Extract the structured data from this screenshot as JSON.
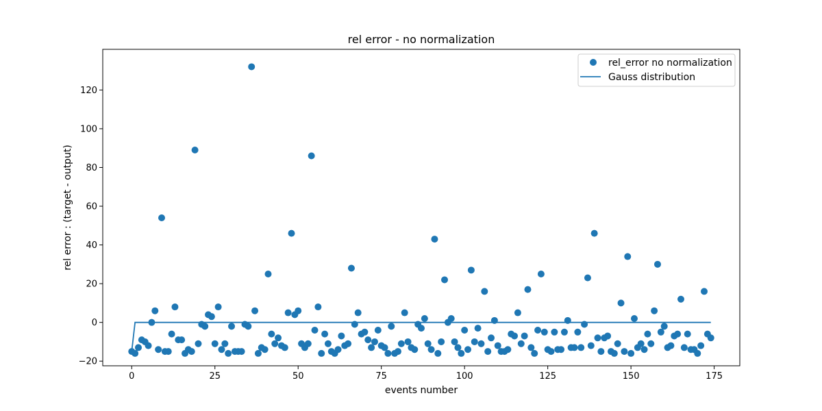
{
  "chart_data": {
    "type": "scatter",
    "title": "rel error - no normalization",
    "xlabel": "events number",
    "ylabel": "rel error : (target - output)",
    "xlim": [
      -8.7,
      182.7
    ],
    "ylim": [
      -22.4,
      141.0
    ],
    "xticks": [
      0,
      25,
      50,
      75,
      100,
      125,
      150,
      175
    ],
    "yticks": [
      -20,
      0,
      20,
      40,
      60,
      80,
      100,
      120
    ],
    "grid": false,
    "legend_position": "top-right",
    "colors": {
      "series": "#1f77b4",
      "axes": "#000000",
      "background": "#ffffff"
    },
    "legend": [
      {
        "label": "rel_error no normalization",
        "kind": "marker"
      },
      {
        "label": "Gauss distribution",
        "kind": "line"
      }
    ],
    "series": [
      {
        "name": "rel_error no normalization",
        "kind": "scatter",
        "x": [
          0,
          1,
          2,
          3,
          4,
          5,
          6,
          7,
          8,
          9,
          10,
          11,
          12,
          13,
          14,
          15,
          16,
          17,
          18,
          19,
          20,
          21,
          22,
          23,
          24,
          25,
          26,
          27,
          28,
          29,
          30,
          31,
          32,
          33,
          34,
          35,
          36,
          37,
          38,
          39,
          40,
          41,
          42,
          43,
          44,
          45,
          46,
          47,
          48,
          49,
          50,
          51,
          52,
          53,
          54,
          55,
          56,
          57,
          58,
          59,
          60,
          61,
          62,
          63,
          64,
          65,
          66,
          67,
          68,
          69,
          70,
          71,
          72,
          73,
          74,
          75,
          76,
          77,
          78,
          79,
          80,
          81,
          82,
          83,
          84,
          85,
          86,
          87,
          88,
          89,
          90,
          91,
          92,
          93,
          94,
          95,
          96,
          97,
          98,
          99,
          100,
          101,
          102,
          103,
          104,
          105,
          106,
          107,
          108,
          109,
          110,
          111,
          112,
          113,
          114,
          115,
          116,
          117,
          118,
          119,
          120,
          121,
          122,
          123,
          124,
          125,
          126,
          127,
          128,
          129,
          130,
          131,
          132,
          133,
          134,
          135,
          136,
          137,
          138,
          139,
          140,
          141,
          142,
          143,
          144,
          145,
          146,
          147,
          148,
          149,
          150,
          151,
          152,
          153,
          154,
          155,
          156,
          157,
          158,
          159,
          160,
          161,
          162,
          163,
          164,
          165,
          166,
          167,
          168,
          169,
          170,
          171,
          172,
          173,
          174
        ],
        "y": [
          -15,
          -16,
          -13,
          -9,
          -10,
          -12,
          0,
          6,
          -14,
          54,
          -15,
          -15,
          -6,
          8,
          -9,
          -9,
          -16,
          -14,
          -15,
          89,
          -11,
          -1,
          -2,
          4,
          3,
          -11,
          8,
          -14,
          -11,
          -16,
          -2,
          -15,
          -15,
          -15,
          -1,
          -2,
          132,
          6,
          -16,
          -13,
          -14,
          25,
          -6,
          -11,
          -8,
          -12,
          -13,
          5,
          46,
          4,
          6,
          -11,
          -13,
          -11,
          86,
          -4,
          8,
          -16,
          -6,
          -11,
          -15,
          -16,
          -14,
          -7,
          -12,
          -11,
          28,
          -1,
          5,
          -6,
          -5,
          -9,
          -13,
          -10,
          -4,
          -12,
          -13,
          -16,
          -2,
          -16,
          -15,
          -11,
          5,
          -10,
          -13,
          -14,
          -1,
          -3,
          2,
          -11,
          -14,
          43,
          -16,
          -10,
          22,
          0,
          2,
          -10,
          -13,
          -16,
          -4,
          -14,
          27,
          -10,
          -3,
          -11,
          16,
          -15,
          -8,
          1,
          -12,
          -15,
          -15,
          -14,
          -6,
          -7,
          5,
          -11,
          -7,
          17,
          -13,
          -16,
          -4,
          25,
          -5,
          -14,
          -15,
          -5,
          -14,
          -14,
          -5,
          1,
          -13,
          -13,
          -5,
          -13,
          -1,
          23,
          -12,
          46,
          -8,
          -15,
          -8,
          -7,
          -15,
          -16,
          -11,
          10,
          -15,
          34,
          -16,
          2,
          -13,
          -11,
          -14,
          -6,
          -11,
          6,
          30,
          -5,
          -2,
          -13,
          -12,
          -7,
          -6,
          12,
          -13,
          -6,
          -14,
          -14,
          -16,
          -12,
          16,
          -6,
          -8
        ]
      },
      {
        "name": "Gauss distribution",
        "kind": "line",
        "x": [
          0,
          1,
          174
        ],
        "y": [
          -15,
          0,
          0
        ]
      }
    ]
  }
}
